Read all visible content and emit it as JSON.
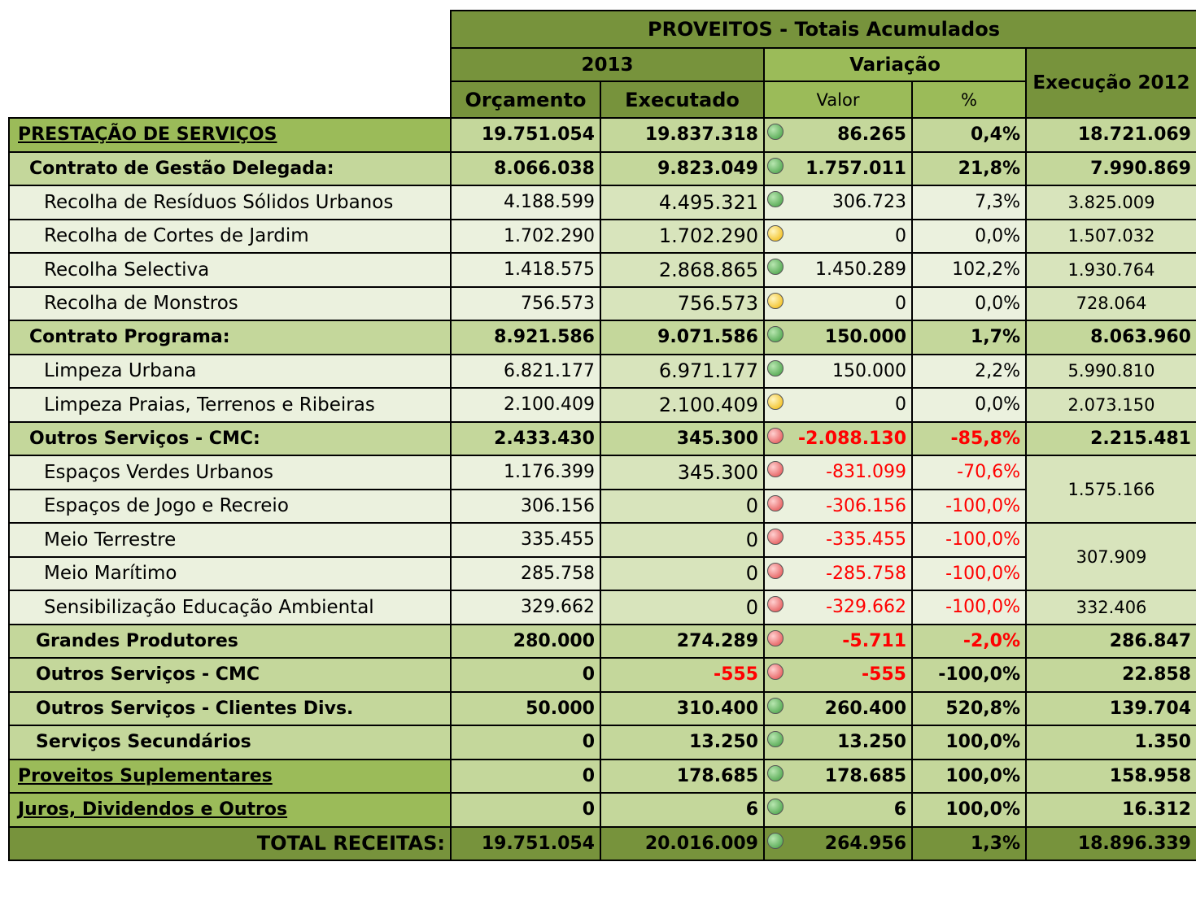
{
  "header": {
    "title": "PROVEITOS - Totais Acumulados",
    "year": "2013",
    "variation": "Variação",
    "previous": "Execução 2012",
    "columns": {
      "orcamento": "Orçamento",
      "executado": "Executado",
      "valor": "Valor",
      "pct": "%"
    }
  },
  "table": {
    "rows": [
      {
        "style": "section",
        "label": "PRESTAÇÃO DE SERVIÇOS",
        "orcamento": "19.751.054",
        "executado": "19.837.318",
        "signal": "green",
        "valor": "86.265",
        "pct": "0,4%",
        "exec2012": "18.721.069",
        "red": []
      },
      {
        "style": "group",
        "label": "Contrato de Gestão Delegada:",
        "orcamento": "8.066.038",
        "executado": "9.823.049",
        "signal": "green",
        "valor": "1.757.011",
        "pct": "21,8%",
        "exec2012": "7.990.869",
        "red": []
      },
      {
        "style": "item",
        "label": "Recolha de Resíduos Sólidos Urbanos",
        "orcamento": "4.188.599",
        "executado": "4.495.321",
        "signal": "green",
        "valor": "306.723",
        "pct": "7,3%",
        "exec2012": "3.825.009",
        "red": []
      },
      {
        "style": "item",
        "label": "Recolha de Cortes de Jardim",
        "orcamento": "1.702.290",
        "executado": "1.702.290",
        "signal": "yellow",
        "valor": "0",
        "pct": "0,0%",
        "exec2012": "1.507.032",
        "red": []
      },
      {
        "style": "item",
        "label": "Recolha Selectiva",
        "orcamento": "1.418.575",
        "executado": "2.868.865",
        "signal": "green",
        "valor": "1.450.289",
        "pct": "102,2%",
        "exec2012": "1.930.764",
        "red": []
      },
      {
        "style": "item",
        "label": "Recolha de Monstros",
        "orcamento": "756.573",
        "executado": "756.573",
        "signal": "yellow",
        "valor": "0",
        "pct": "0,0%",
        "exec2012": "728.064",
        "red": []
      },
      {
        "style": "group",
        "label": "Contrato Programa:",
        "orcamento": "8.921.586",
        "executado": "9.071.586",
        "signal": "green",
        "valor": "150.000",
        "pct": "1,7%",
        "exec2012": "8.063.960",
        "red": []
      },
      {
        "style": "item",
        "label": "Limpeza Urbana",
        "orcamento": "6.821.177",
        "executado": "6.971.177",
        "signal": "green",
        "valor": "150.000",
        "pct": "2,2%",
        "exec2012": "5.990.810",
        "red": []
      },
      {
        "style": "item",
        "label": "Limpeza Praias, Terrenos e Ribeiras",
        "orcamento": "2.100.409",
        "executado": "2.100.409",
        "signal": "yellow",
        "valor": "0",
        "pct": "0,0%",
        "exec2012": "2.073.150",
        "red": []
      },
      {
        "style": "group",
        "label": "Outros Serviços - CMC:",
        "orcamento": "2.433.430",
        "executado": "345.300",
        "signal": "red",
        "valor": "-2.088.130",
        "pct": "-85,8%",
        "exec2012": "2.215.481",
        "red": [
          "valor",
          "pct"
        ]
      },
      {
        "style": "item",
        "label": "Espaços Verdes Urbanos",
        "orcamento": "1.176.399",
        "executado": "345.300",
        "signal": "red",
        "valor": "-831.099",
        "pct": "-70,6%",
        "exec2012": "1.575.166",
        "red": [
          "valor",
          "pct"
        ]
      },
      {
        "style": "item",
        "label": "Espaços de Jogo e Recreio",
        "orcamento": "306.156",
        "executado": "0",
        "signal": "red",
        "valor": "-306.156",
        "pct": "-100,0%",
        "exec2012": null,
        "red": [
          "valor",
          "pct"
        ]
      },
      {
        "style": "item",
        "label": "Meio Terrestre",
        "orcamento": "335.455",
        "executado": "0",
        "signal": "red",
        "valor": "-335.455",
        "pct": "-100,0%",
        "exec2012": "307.909",
        "red": [
          "valor",
          "pct"
        ]
      },
      {
        "style": "item",
        "label": "Meio Marítimo",
        "orcamento": "285.758",
        "executado": "0",
        "signal": "red",
        "valor": "-285.758",
        "pct": "-100,0%",
        "exec2012": null,
        "red": [
          "valor",
          "pct"
        ]
      },
      {
        "style": "item",
        "label": "Sensibilização Educação Ambiental",
        "orcamento": "329.662",
        "executado": "0",
        "signal": "red",
        "valor": "-329.662",
        "pct": "-100,0%",
        "exec2012": "332.406",
        "red": [
          "valor",
          "pct"
        ]
      },
      {
        "style": "group2",
        "label": "Grandes Produtores",
        "orcamento": "280.000",
        "executado": "274.289",
        "signal": "red",
        "valor": "-5.711",
        "pct": "-2,0%",
        "exec2012": "286.847",
        "red": [
          "valor",
          "pct"
        ]
      },
      {
        "style": "group2",
        "label": "Outros Serviços - CMC",
        "orcamento": "0",
        "executado": "-555",
        "signal": "red",
        "valor": "-555",
        "pct": "-100,0%",
        "exec2012": "22.858",
        "red": [
          "executado",
          "valor"
        ]
      },
      {
        "style": "group2",
        "label": "Outros Serviços - Clientes Divs.",
        "orcamento": "50.000",
        "executado": "310.400",
        "signal": "green",
        "valor": "260.400",
        "pct": "520,8%",
        "exec2012": "139.704",
        "red": []
      },
      {
        "style": "group2",
        "label": "Serviços Secundários",
        "orcamento": "0",
        "executado": "13.250",
        "signal": "green",
        "valor": "13.250",
        "pct": "100,0%",
        "exec2012": "1.350",
        "red": []
      },
      {
        "style": "section",
        "label": "Proveitos Suplementares",
        "orcamento": "0",
        "executado": "178.685",
        "signal": "green",
        "valor": "178.685",
        "pct": "100,0%",
        "exec2012": "158.958",
        "red": []
      },
      {
        "style": "section",
        "label": "Juros, Dividendos e Outros",
        "orcamento": "0",
        "executado": "6",
        "signal": "green",
        "valor": "6",
        "pct": "100,0%",
        "exec2012": "16.312",
        "red": []
      },
      {
        "style": "total",
        "label": "TOTAL RECEITAS:",
        "orcamento": "19.751.054",
        "executado": "20.016.009",
        "signal": "green",
        "valor": "264.956",
        "pct": "1,3%",
        "exec2012": "18.896.339",
        "red": []
      }
    ]
  }
}
